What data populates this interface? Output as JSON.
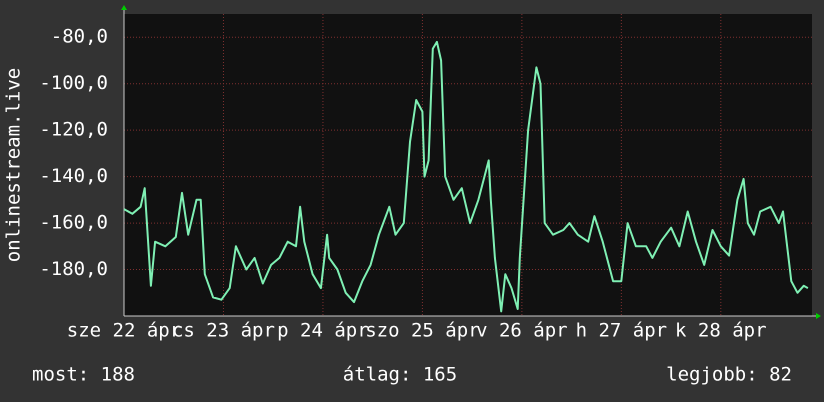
{
  "chart_data": {
    "type": "line",
    "y_label": "onlinestream.live",
    "xlim": [
      0,
      166
    ],
    "xticks": [
      {
        "value": 0,
        "label": "sze 22 ápr"
      },
      {
        "value": 24,
        "label": "cs 23 ápr"
      },
      {
        "value": 48,
        "label": "p 24 ápr"
      },
      {
        "value": 72,
        "label": "szo 25 ápr"
      },
      {
        "value": 96,
        "label": "v 26 ápr"
      },
      {
        "value": 120,
        "label": "h 27 ápr"
      },
      {
        "value": 144,
        "label": "k 28 ápr"
      }
    ],
    "ylim": [
      -200,
      -70
    ],
    "yticks": [
      {
        "value": -180,
        "label": "-180,0"
      },
      {
        "value": -160,
        "label": "-160,0"
      },
      {
        "value": -140,
        "label": "-140,0"
      },
      {
        "value": -120,
        "label": "-120,0"
      },
      {
        "value": -100,
        "label": "-100,0"
      },
      {
        "value": -80,
        "label": "-80,0"
      }
    ],
    "grid": true,
    "series": [
      {
        "color": "#7ff0b4",
        "x": [
          0,
          2,
          4,
          5,
          6.5,
          7.5,
          10,
          12.5,
          14,
          15.5,
          17.5,
          18.5,
          19.5,
          21.5,
          23.5,
          25.5,
          27,
          29.5,
          31.5,
          33.5,
          35.5,
          37.5,
          39.5,
          41.5,
          42.5,
          43.5,
          45.5,
          47.5,
          49,
          49.5,
          51.5,
          53.5,
          55.5,
          57.5,
          59.5,
          61.5,
          64,
          65.5,
          67.5,
          69,
          70.5,
          72,
          72.5,
          73.5,
          74.5,
          75.5,
          76.5,
          77.5,
          79.5,
          81.5,
          83.5,
          85.5,
          88,
          88.5,
          89.5,
          91,
          92,
          93.5,
          95,
          95.5,
          97.5,
          99.5,
          100.5,
          101.5,
          103.5,
          106,
          107.5,
          109.5,
          112,
          113.5,
          115.5,
          118,
          120,
          121.5,
          123.5,
          126,
          127.5,
          129.5,
          132,
          134,
          136,
          138,
          140,
          142,
          144,
          146,
          148,
          149.5,
          150.5,
          152,
          153.5,
          156,
          158,
          159,
          161,
          162.5,
          164,
          165
        ],
        "values": [
          -154,
          -156,
          -153,
          -145,
          -187,
          -168,
          -170,
          -166,
          -147,
          -165,
          -150,
          -150,
          -182,
          -192,
          -193,
          -188,
          -170,
          -180,
          -175,
          -186,
          -178,
          -175,
          -168,
          -170,
          -153,
          -168,
          -182,
          -188,
          -165,
          -175,
          -180,
          -190,
          -194,
          -185,
          -178,
          -165,
          -153,
          -165,
          -160,
          -125,
          -107,
          -112,
          -140,
          -133,
          -85,
          -82,
          -90,
          -140,
          -150,
          -145,
          -160,
          -150,
          -133,
          -150,
          -175,
          -198,
          -182,
          -188,
          -197,
          -175,
          -120,
          -93,
          -100,
          -160,
          -165,
          -163,
          -160,
          -165,
          -168,
          -157,
          -168,
          -185,
          -185,
          -160,
          -170,
          -170,
          -175,
          -168,
          -162,
          -170,
          -155,
          -168,
          -178,
          -163,
          -170,
          -174,
          -150,
          -141,
          -160,
          -165,
          -155,
          -153,
          -160,
          -155,
          -185,
          -190,
          -187,
          -188
        ]
      }
    ]
  },
  "footer": [
    "most: 188",
    "átlag: 165",
    "legjobb: 82"
  ]
}
